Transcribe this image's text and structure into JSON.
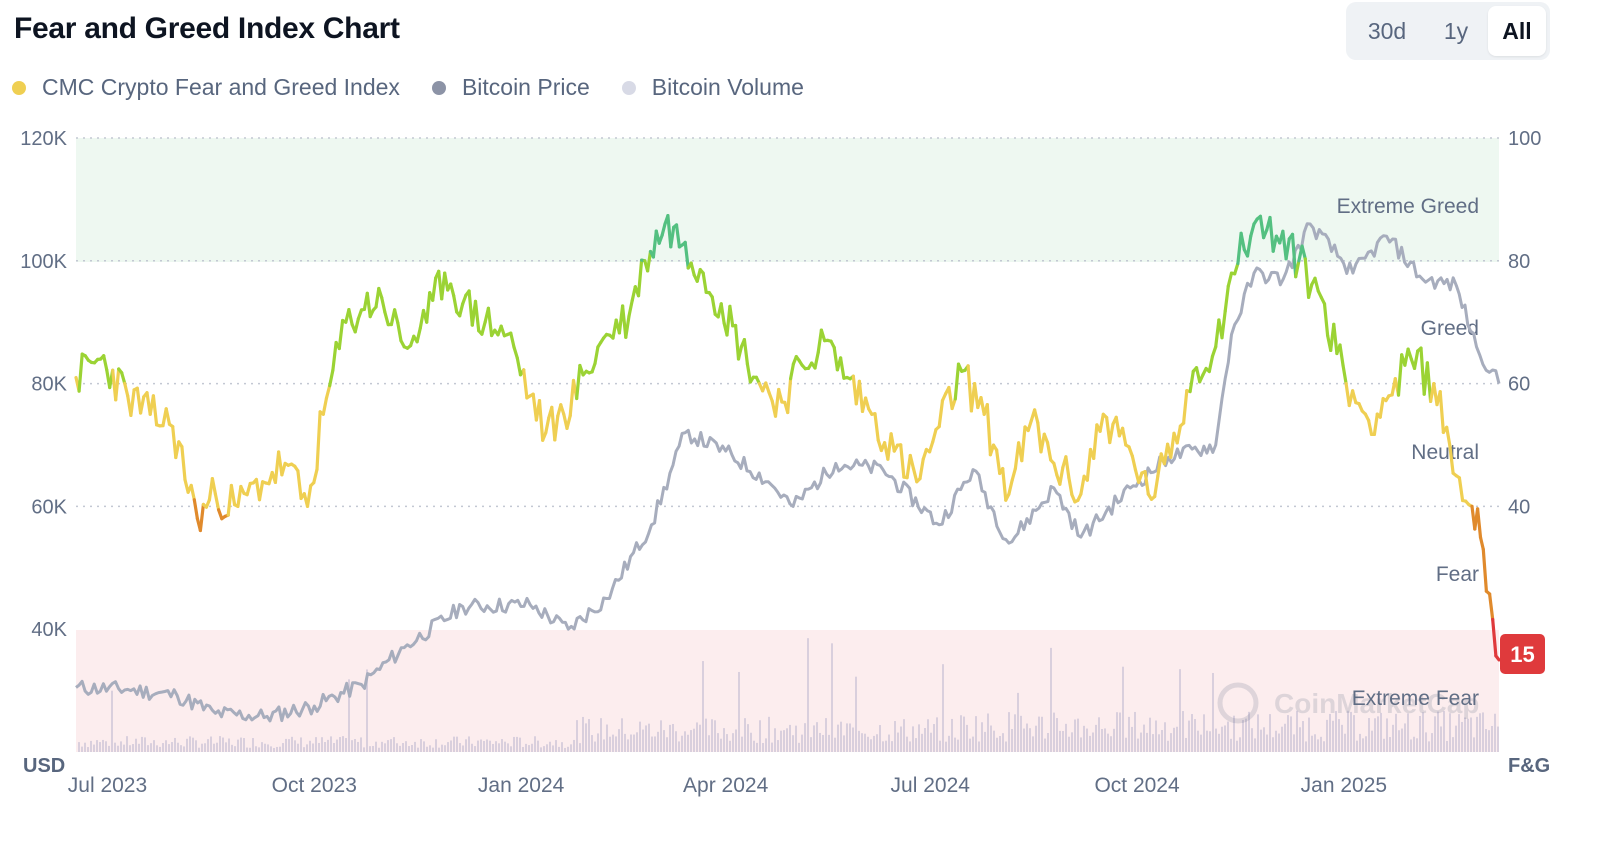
{
  "header": {
    "title": "Fear and Greed Index Chart"
  },
  "range_buttons": [
    {
      "label": "30d"
    },
    {
      "label": "1y"
    },
    {
      "label": "All"
    }
  ],
  "active_range": "All",
  "legend": [
    {
      "label": "CMC Crypto Fear and Greed Index",
      "color": "#efcf52"
    },
    {
      "label": "Bitcoin Price",
      "color": "#8c93a6"
    },
    {
      "label": "Bitcoin Volume",
      "color": "#d8dae6"
    }
  ],
  "axes": {
    "left_unit": "USD",
    "right_unit": "F&G",
    "left_ticks": [
      "120K",
      "100K",
      "80K",
      "60K",
      "40K"
    ],
    "right_ticks": [
      "100",
      "80",
      "60",
      "40"
    ],
    "x_ticks": [
      "Jul 2023",
      "Oct 2023",
      "Jan 2024",
      "Apr 2024",
      "Jul 2024",
      "Oct 2024",
      "Jan 2025"
    ]
  },
  "zones": [
    "Extreme Greed",
    "Greed",
    "Neutral",
    "Fear",
    "Extreme Fear"
  ],
  "current_value": "15",
  "watermark": "CoinMarketCap",
  "colors": {
    "extreme_fear": "#df3a3c",
    "fear": "#e08a2c",
    "neutral": "#efcf52",
    "greed": "#9bd334",
    "extreme_greed": "#54c081",
    "price": "#a7adbd",
    "volume": "#d9cfdd",
    "greed_band": "#eef8f1",
    "fear_band": "#fcedee"
  },
  "chart_data": {
    "type": "line",
    "x_range": [
      "2023-06-17",
      "2025-03-11"
    ],
    "left_axis": {
      "unit": "USD",
      "ylim": [
        20000,
        120000
      ]
    },
    "right_axis": {
      "unit": "F&G",
      "ylim": [
        0,
        100
      ]
    },
    "series": [
      {
        "name": "CMC Crypto Fear and Greed Index",
        "axis": "right",
        "x": [
          "2023-06-17",
          "2023-06-28",
          "2023-07-10",
          "2023-07-20",
          "2023-07-30",
          "2023-08-10",
          "2023-08-18",
          "2023-08-28",
          "2023-09-08",
          "2023-09-18",
          "2023-09-28",
          "2023-10-05",
          "2023-10-15",
          "2023-10-22",
          "2023-10-31",
          "2023-11-10",
          "2023-11-20",
          "2023-11-28",
          "2023-12-06",
          "2023-12-16",
          "2023-12-26",
          "2024-01-05",
          "2024-01-12",
          "2024-01-20",
          "2024-01-30",
          "2024-02-08",
          "2024-02-18",
          "2024-02-25",
          "2024-03-05",
          "2024-03-14",
          "2024-03-22",
          "2024-03-30",
          "2024-04-08",
          "2024-04-16",
          "2024-04-26",
          "2024-05-05",
          "2024-05-15",
          "2024-05-25",
          "2024-06-05",
          "2024-06-15",
          "2024-06-25",
          "2024-07-05",
          "2024-07-15",
          "2024-07-25",
          "2024-08-05",
          "2024-08-15",
          "2024-08-25",
          "2024-09-06",
          "2024-09-16",
          "2024-09-26",
          "2024-10-06",
          "2024-10-16",
          "2024-10-26",
          "2024-11-05",
          "2024-11-12",
          "2024-11-22",
          "2024-12-02",
          "2024-12-12",
          "2024-12-22",
          "2025-01-02",
          "2025-01-12",
          "2025-01-21",
          "2025-01-31",
          "2025-02-10",
          "2025-02-20",
          "2025-02-27",
          "2025-03-04",
          "2025-03-11"
        ],
        "values": [
          61,
          64,
          58,
          55,
          53,
          38,
          42,
          40,
          44,
          47,
          40,
          55,
          70,
          72,
          74,
          66,
          70,
          78,
          73,
          70,
          68,
          58,
          52,
          55,
          62,
          68,
          71,
          80,
          86,
          83,
          78,
          73,
          66,
          60,
          57,
          63,
          67,
          61,
          55,
          49,
          44,
          53,
          62,
          55,
          42,
          54,
          47,
          42,
          55,
          50,
          42,
          48,
          62,
          66,
          78,
          86,
          84,
          80,
          74,
          60,
          54,
          58,
          64,
          60,
          45,
          40,
          33,
          15
        ]
      },
      {
        "name": "Bitcoin Price",
        "axis": "left",
        "x": [
          "2023-06-17",
          "2023-07-10",
          "2023-08-01",
          "2023-08-18",
          "2023-09-10",
          "2023-10-01",
          "2023-10-22",
          "2023-11-10",
          "2023-12-06",
          "2024-01-05",
          "2024-01-22",
          "2024-02-08",
          "2024-02-28",
          "2024-03-14",
          "2024-04-01",
          "2024-04-20",
          "2024-05-01",
          "2024-05-20",
          "2024-06-10",
          "2024-07-05",
          "2024-07-20",
          "2024-08-05",
          "2024-08-25",
          "2024-09-06",
          "2024-09-28",
          "2024-10-15",
          "2024-11-05",
          "2024-11-12",
          "2024-11-22",
          "2024-12-05",
          "2024-12-17",
          "2025-01-05",
          "2025-01-20",
          "2025-02-05",
          "2025-02-20",
          "2025-03-01",
          "2025-03-11"
        ],
        "values": [
          30500,
          30200,
          29200,
          26300,
          25800,
          27500,
          31000,
          37000,
          43700,
          44000,
          40000,
          45000,
          57000,
          72000,
          69000,
          64000,
          60000,
          67000,
          66000,
          57000,
          66000,
          54000,
          63000,
          55000,
          63000,
          68000,
          70000,
          88000,
          98000,
          97000,
          106000,
          98000,
          104000,
          97000,
          96000,
          86000,
          80000
        ]
      }
    ]
  }
}
